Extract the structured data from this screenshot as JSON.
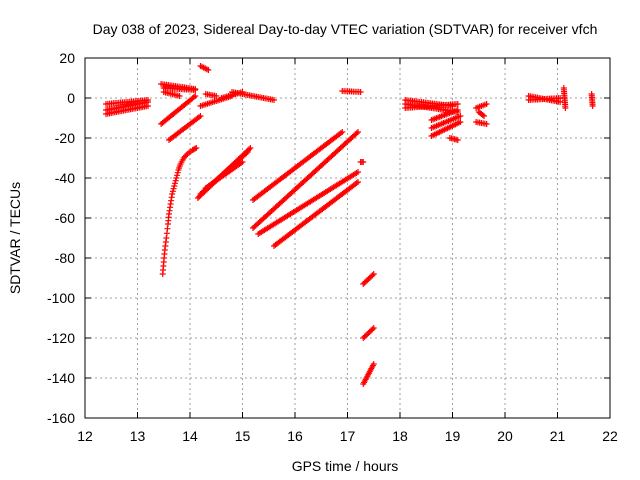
{
  "chart_data": {
    "type": "scatter",
    "title": "Day 038 of 2023, Sidereal Day-to-day VTEC variation (SDTVAR) for receiver vfch",
    "xlabel": "GPS time / hours",
    "ylabel": "SDTVAR / TECUs",
    "xlim": [
      12,
      22
    ],
    "ylim": [
      -160,
      20
    ],
    "xticks": [
      12,
      13,
      14,
      15,
      16,
      17,
      18,
      19,
      20,
      21,
      22
    ],
    "yticks": [
      20,
      0,
      -20,
      -40,
      -60,
      -80,
      -100,
      -120,
      -140,
      -160
    ],
    "grid": true,
    "marker": "+",
    "color": "#ff0000",
    "series": [
      {
        "name": "s1",
        "segments": [
          [
            12.4,
            -6,
            13.2,
            -2
          ],
          [
            12.4,
            -3,
            13.2,
            -1
          ],
          [
            12.4,
            -8,
            13.2,
            -4
          ]
        ]
      },
      {
        "name": "s2",
        "segments": [
          [
            13.45,
            7,
            14.1,
            4.5
          ],
          [
            13.5,
            5,
            14.1,
            4
          ],
          [
            13.5,
            3,
            13.8,
            1
          ]
        ]
      },
      {
        "name": "s3",
        "segments": [
          [
            14.2,
            16,
            14.35,
            14
          ]
        ]
      },
      {
        "name": "s4",
        "segments": [
          [
            14.3,
            2,
            14.5,
            1
          ],
          [
            14.6,
            0,
            15.0,
            3
          ],
          [
            14.2,
            -4,
            14.8,
            1
          ],
          [
            14.8,
            3,
            15.6,
            -1
          ]
        ]
      },
      {
        "name": "s5",
        "segments": [
          [
            13.45,
            -13,
            14.1,
            1
          ],
          [
            13.6,
            -21,
            14.2,
            -9
          ]
        ]
      },
      {
        "name": "s6",
        "segments": [
          [
            14.15,
            -50,
            15.15,
            -25
          ],
          [
            14.2,
            -48,
            15.1,
            -27
          ],
          [
            14.3,
            -45,
            15.0,
            -32
          ]
        ]
      },
      {
        "name": "s7",
        "segments": [
          [
            15.2,
            -51,
            16.9,
            -17
          ],
          [
            15.2,
            -65,
            17.2,
            -17
          ],
          [
            15.3,
            -68,
            17.2,
            -37
          ],
          [
            15.6,
            -74,
            17.2,
            -42
          ]
        ]
      },
      {
        "name": "s8",
        "segments": [
          [
            16.9,
            3.5,
            17.25,
            3
          ]
        ]
      },
      {
        "name": "s9",
        "segments": [
          [
            17.3,
            -93,
            17.5,
            -88
          ],
          [
            17.3,
            -120,
            17.5,
            -115
          ],
          [
            17.3,
            -143,
            17.5,
            -133
          ]
        ]
      },
      {
        "name": "s10",
        "segments": [
          [
            17.25,
            -32,
            17.3,
            -32
          ]
        ]
      },
      {
        "name": "s11",
        "segments": [
          [
            18.1,
            -5,
            19.1,
            -3
          ],
          [
            18.1,
            -1,
            19.0,
            -4
          ],
          [
            18.1,
            -3,
            19.1,
            -7
          ]
        ]
      },
      {
        "name": "s12",
        "segments": [
          [
            18.6,
            -11,
            19.1,
            -6
          ],
          [
            18.6,
            -15,
            19.15,
            -9
          ],
          [
            18.6,
            -19,
            19.15,
            -12
          ]
        ]
      },
      {
        "name": "s13",
        "segments": [
          [
            18.95,
            -20,
            19.1,
            -21
          ]
        ]
      },
      {
        "name": "s14",
        "segments": [
          [
            19.45,
            -5,
            19.65,
            -3
          ],
          [
            19.45,
            -12,
            19.65,
            -13
          ],
          [
            19.5,
            -7,
            19.6,
            -9
          ]
        ]
      },
      {
        "name": "s15",
        "segments": [
          [
            20.45,
            -1,
            21.05,
            0
          ],
          [
            20.45,
            1,
            21.05,
            -2
          ]
        ]
      },
      {
        "name": "s16",
        "segments": [
          [
            21.12,
            5,
            21.15,
            -5
          ],
          [
            21.65,
            2,
            21.67,
            -4
          ]
        ]
      }
    ],
    "curves": [
      {
        "name": "steep-rise",
        "points": [
          [
            13.48,
            -88
          ],
          [
            13.5,
            -82
          ],
          [
            13.52,
            -76
          ],
          [
            13.55,
            -70
          ],
          [
            13.58,
            -63
          ],
          [
            13.6,
            -58
          ],
          [
            13.63,
            -53
          ],
          [
            13.66,
            -48
          ],
          [
            13.7,
            -44
          ],
          [
            13.74,
            -40
          ],
          [
            13.78,
            -36
          ],
          [
            13.82,
            -33
          ],
          [
            13.88,
            -30
          ],
          [
            13.95,
            -28
          ],
          [
            14.05,
            -26
          ],
          [
            14.12,
            -25
          ]
        ]
      }
    ]
  }
}
